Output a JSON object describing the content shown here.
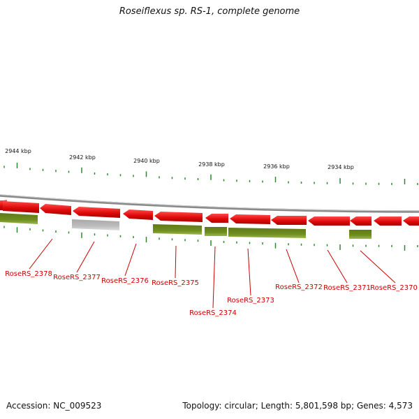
{
  "title": "Roseiflexus sp. RS-1, complete genome",
  "footer": {
    "accession": "Accession: NC_009523",
    "summary": "Topology: circular; Length: 5,801,598 bp; Genes: 4,573"
  },
  "scale_labels": [
    "2944 kbp",
    "2942 kbp",
    "2940 kbp",
    "2938 kbp",
    "2936 kbp",
    "2934 kbp"
  ],
  "gene_labels": [
    "RoseRS_2378",
    "RoseRS_2377",
    "RoseRS_2376",
    "RoseRS_2375",
    "RoseRS_2374",
    "RoseRS_2373",
    "RoseRS_2372",
    "RoseRS_2371",
    "RoseRS_2370"
  ],
  "colors": {
    "forward_gene": "#e01010",
    "reverse_gene": "#6e8c1e",
    "pseudo_gene": "#b4b4b4",
    "tick": "#2a8a2a",
    "label": "#cc0000",
    "backbone": "#8c8c8c"
  }
}
